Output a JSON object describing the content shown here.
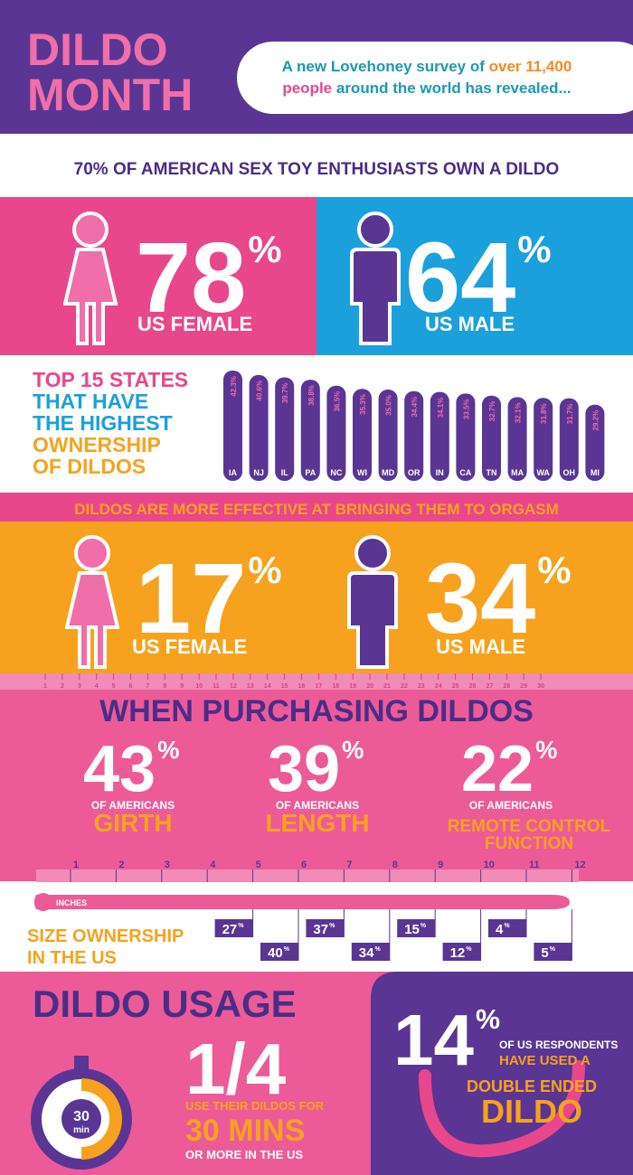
{
  "header": {
    "logo": [
      "DILDO",
      "MONTH"
    ],
    "intro": {
      "line1": [
        "A new Lovehoney survey of ",
        "over 11,400"
      ],
      "line2": [
        "people",
        " around the world has revealed..."
      ]
    }
  },
  "ownership": {
    "headline": "70% OF AMERICAN SEX TOY ENTHUSIASTS OWN A DILDO",
    "female": {
      "number": "78",
      "unit": "%",
      "label": "US FEMALE"
    },
    "male": {
      "number": "64",
      "unit": "%",
      "label": "US MALE"
    }
  },
  "chart_data": {
    "type": "bar",
    "title": [
      "TOP 15 STATES",
      "THAT HAVE",
      "THE HIGHEST",
      "OWNERSHIP",
      "OF DILDOS"
    ],
    "categories": [
      "IA",
      "NJ",
      "IL",
      "PA",
      "NC",
      "WI",
      "MD",
      "OR",
      "IN",
      "CA",
      "TN",
      "MA",
      "WA",
      "OH",
      "MI"
    ],
    "values": [
      42.3,
      40.6,
      39.7,
      38.8,
      36.5,
      35.3,
      35.0,
      34.4,
      34.1,
      33.5,
      32.7,
      32.1,
      31.8,
      31.7,
      29.2
    ],
    "value_labels": [
      "42.3%",
      "40.6%",
      "39.7%",
      "38.8%",
      "36.5%",
      "35.3%",
      "35.0%",
      "34.4%",
      "34.1%",
      "33.5%",
      "32.7%",
      "32.1%",
      "31.8%",
      "31.7%",
      "29.2%"
    ],
    "color": "#5a3593"
  },
  "orgasm": {
    "headline": "DILDOS ARE MORE EFFECTIVE AT BRINGING THEM TO ORGASM",
    "female": {
      "number": "17",
      "unit": "%",
      "label": "US FEMALE"
    },
    "male": {
      "number": "34",
      "unit": "%",
      "label": "US MALE"
    }
  },
  "purchasing": {
    "ruler": [
      1,
      2,
      3,
      4,
      5,
      6,
      7,
      8,
      9,
      10,
      11,
      12,
      13,
      14,
      15,
      16,
      17,
      18,
      19,
      20,
      21,
      22,
      23,
      24,
      25,
      26,
      27,
      28,
      29,
      30
    ],
    "title": "WHEN PURCHASING DILDOS",
    "items": [
      {
        "number": "43",
        "unit": "%",
        "prefix": "OF AMERICANS",
        "label": [
          "GIRTH"
        ]
      },
      {
        "number": "39",
        "unit": "%",
        "prefix": "OF AMERICANS",
        "label": [
          "LENGTH"
        ]
      },
      {
        "number": "22",
        "unit": "%",
        "prefix": "OF AMERICANS",
        "label": [
          "REMOTE CONTROL",
          "FUNCTION"
        ]
      }
    ]
  },
  "size": {
    "ruler": [
      1,
      2,
      3,
      4,
      5,
      6,
      7,
      8,
      9,
      10,
      11,
      12
    ],
    "inches": "INCHES",
    "title": [
      "SIZE OWNERSHIP",
      "IN THE US"
    ],
    "items": [
      {
        "number": "27",
        "unit": "%"
      },
      {
        "number": "40",
        "unit": "%"
      },
      {
        "number": "37",
        "unit": "%"
      },
      {
        "number": "34",
        "unit": "%"
      },
      {
        "number": "15",
        "unit": "%"
      },
      {
        "number": "12",
        "unit": "%"
      },
      {
        "number": "4",
        "unit": "%"
      },
      {
        "number": "5",
        "unit": "%"
      }
    ]
  },
  "usage": {
    "title": "DILDO USAGE",
    "timer": [
      "30",
      "min"
    ],
    "fraction": "1/4",
    "lines": [
      "USE THEIR DILDOS FOR",
      "30 MINS",
      "OR MORE IN THE US"
    ]
  },
  "double": {
    "number": "14",
    "unit": "%",
    "lines": [
      "OF US RESPONDENTS",
      "HAVE USED A",
      "DOUBLE ENDED",
      "DILDO"
    ]
  }
}
